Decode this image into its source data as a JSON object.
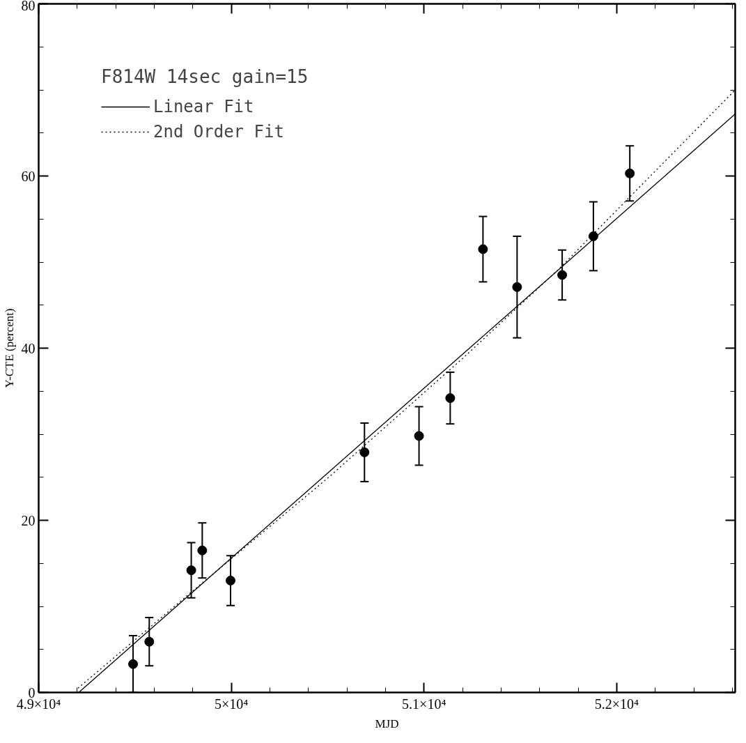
{
  "chart_data": {
    "type": "scatter",
    "xlabel": "MJD",
    "ylabel": "Y-CTE (percent)",
    "legend_title": "F814W 14sec gain=15",
    "legend": "top left",
    "grid": false,
    "marker": "circle",
    "xlim": [
      49000,
      52615
    ],
    "ylim": [
      0,
      80
    ],
    "xticks": [
      {
        "value": 49000,
        "label": "4.9×10⁴"
      },
      {
        "value": 50000,
        "label": "5×10⁴"
      },
      {
        "value": 51000,
        "label": "5.1×10⁴"
      },
      {
        "value": 52000,
        "label": "5.2×10⁴"
      }
    ],
    "yticks": [
      0,
      20,
      40,
      60,
      80
    ],
    "series": [
      {
        "color": "#000000",
        "x": [
          49490,
          49574,
          49792,
          49849,
          49996,
          50691,
          50974,
          51136,
          51306,
          51483,
          51717,
          51879,
          52068
        ],
        "values": [
          3.3,
          5.9,
          14.2,
          16.5,
          13.0,
          27.9,
          29.8,
          34.2,
          51.5,
          47.1,
          48.5,
          53.0,
          60.3
        ],
        "errors": [
          3.3,
          2.8,
          3.2,
          3.2,
          2.9,
          3.4,
          3.4,
          3.0,
          3.8,
          5.9,
          2.9,
          4.0,
          3.2
        ]
      },
      {
        "type": "line",
        "name": "Linear Fit",
        "color": "#000000",
        "line_style": "solid",
        "marker": "none",
        "x": [
          49208,
          52615
        ],
        "values": [
          0,
          67.2
        ]
      },
      {
        "type": "line",
        "name": "2nd Order Fit",
        "color": "#000000",
        "line_style": "dotted",
        "marker": "none",
        "x": [
          49204,
          49800,
          50500,
          51200,
          51700,
          52615
        ],
        "values": [
          0.5,
          11.8,
          24.9,
          38.8,
          49.2,
          70
        ]
      }
    ]
  }
}
